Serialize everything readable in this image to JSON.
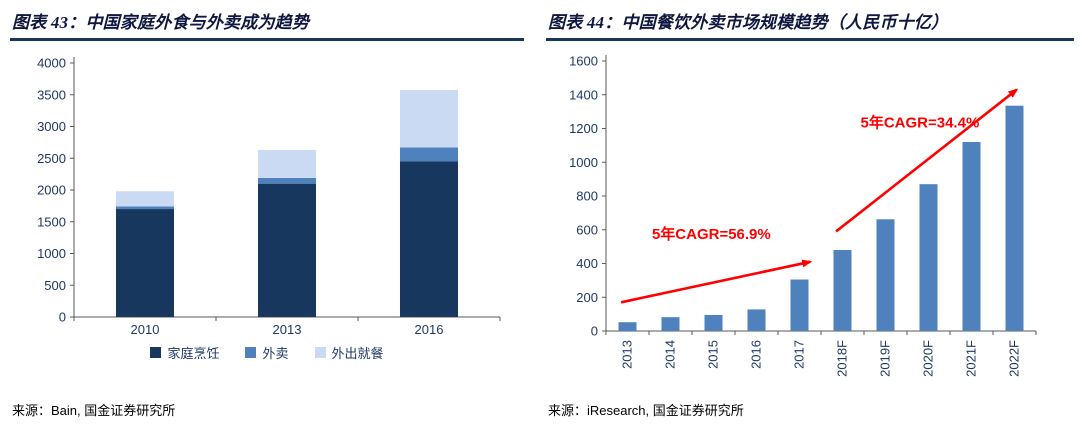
{
  "theme": {
    "title_color": "#10173F",
    "rule_color": "#17365D",
    "axis_text_color": "#1F3864",
    "axis_line_color": "#595959",
    "source_color": "#000000",
    "annotation_color": "#FF0000"
  },
  "chart_data": [
    {
      "type": "bar",
      "subtype": "stacked",
      "title": "图表 43：中国家庭外食与外卖成为趋势",
      "categories": [
        "2010",
        "2013",
        "2016"
      ],
      "series": [
        {
          "name": "家庭烹饪",
          "color": "#17375E",
          "values": [
            1700,
            2100,
            2450
          ]
        },
        {
          "name": "外卖",
          "color": "#4F81BD",
          "values": [
            40,
            90,
            220
          ]
        },
        {
          "name": "外出就餐",
          "color": "#C9DAF2",
          "values": [
            240,
            440,
            905
          ]
        }
      ],
      "xlabel": "",
      "ylabel": "",
      "ylim": [
        0,
        4000
      ],
      "ytick": 500,
      "grid": false,
      "legend_position": "bottom",
      "source": "来源：Bain, 国金证券研究所"
    },
    {
      "type": "bar",
      "subtype": "simple",
      "title": "图表 44：中国餐饮外卖市场规模趋势（人民币十亿）",
      "categories": [
        "2013",
        "2014",
        "2015",
        "2016",
        "2017",
        "2018F",
        "2019F",
        "2020F",
        "2021F",
        "2022F"
      ],
      "values": [
        52,
        82,
        95,
        128,
        305,
        480,
        662,
        870,
        1120,
        1335
      ],
      "bar_color": "#4F81BD",
      "xlabel": "",
      "ylabel": "",
      "ylim": [
        0,
        1600
      ],
      "ytick": 200,
      "grid": false,
      "x_tick_rotation": 90,
      "annotations": [
        {
          "kind": "arrow",
          "from": {
            "cx": -0.15,
            "value": 170
          },
          "to": {
            "cx": 4.25,
            "value": 410
          }
        },
        {
          "kind": "text",
          "text": "5年CAGR=56.9%",
          "cx": 1.95,
          "value": 545
        },
        {
          "kind": "arrow",
          "from": {
            "cx": 4.85,
            "value": 590
          },
          "to": {
            "cx": 9.05,
            "value": 1430
          }
        },
        {
          "kind": "text",
          "text": "5年CAGR=34.4%",
          "cx": 6.8,
          "value": 1205
        }
      ],
      "source": "来源：iResearch, 国金证券研究所"
    }
  ]
}
